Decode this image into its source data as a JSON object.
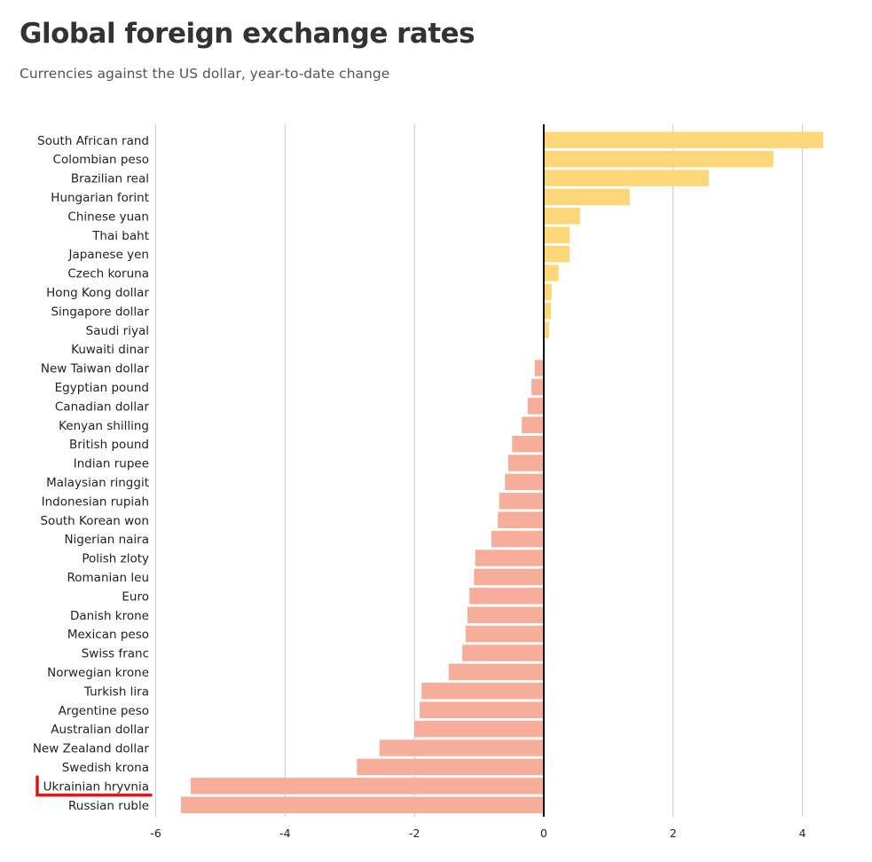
{
  "chart_data": {
    "type": "bar",
    "orientation": "horizontal",
    "title": "Global foreign exchange rates",
    "subtitle": "Currencies against the US dollar, year-to-date change",
    "xlabel": "",
    "ylabel": "",
    "xlim": [
      -6,
      4.4
    ],
    "xticks": [
      -6,
      -4,
      -2,
      0,
      2,
      4
    ],
    "grid": true,
    "colors": {
      "positive": "#fdd67a",
      "negative": "#f6ae9b",
      "highlight": "#e3141c"
    },
    "highlighted_category": "Ukrainian hryvnia",
    "categories": [
      "South African rand",
      "Colombian peso",
      "Brazilian real",
      "Hungarian forint",
      "Chinese yuan",
      "Thai baht",
      "Japanese yen",
      "Czech koruna",
      "Hong Kong dollar",
      "Singapore dollar",
      "Saudi riyal",
      "Kuwaiti dinar",
      "New Taiwan dollar",
      "Egyptian pound",
      "Canadian dollar",
      "Kenyan shilling",
      "British pound",
      "Indian rupee",
      "Malaysian ringgit",
      "Indonesian rupiah",
      "South Korean won",
      "Nigerian naira",
      "Polish zloty",
      "Romanian leu",
      "Euro",
      "Danish krone",
      "Mexican peso",
      "Swiss franc",
      "Norwegian krone",
      "Turkish lira",
      "Argentine peso",
      "Australian dollar",
      "New Zealand dollar",
      "Swedish krona",
      "Ukrainian hryvnia",
      "Russian ruble"
    ],
    "values": [
      4.32,
      3.55,
      2.55,
      1.33,
      0.56,
      0.4,
      0.4,
      0.23,
      0.12,
      0.11,
      0.08,
      0.0,
      -0.14,
      -0.19,
      -0.25,
      -0.34,
      -0.49,
      -0.55,
      -0.6,
      -0.69,
      -0.71,
      -0.81,
      -1.06,
      -1.08,
      -1.15,
      -1.18,
      -1.21,
      -1.26,
      -1.47,
      -1.89,
      -1.92,
      -2.0,
      -2.54,
      -2.89,
      -5.46,
      -5.61
    ]
  }
}
